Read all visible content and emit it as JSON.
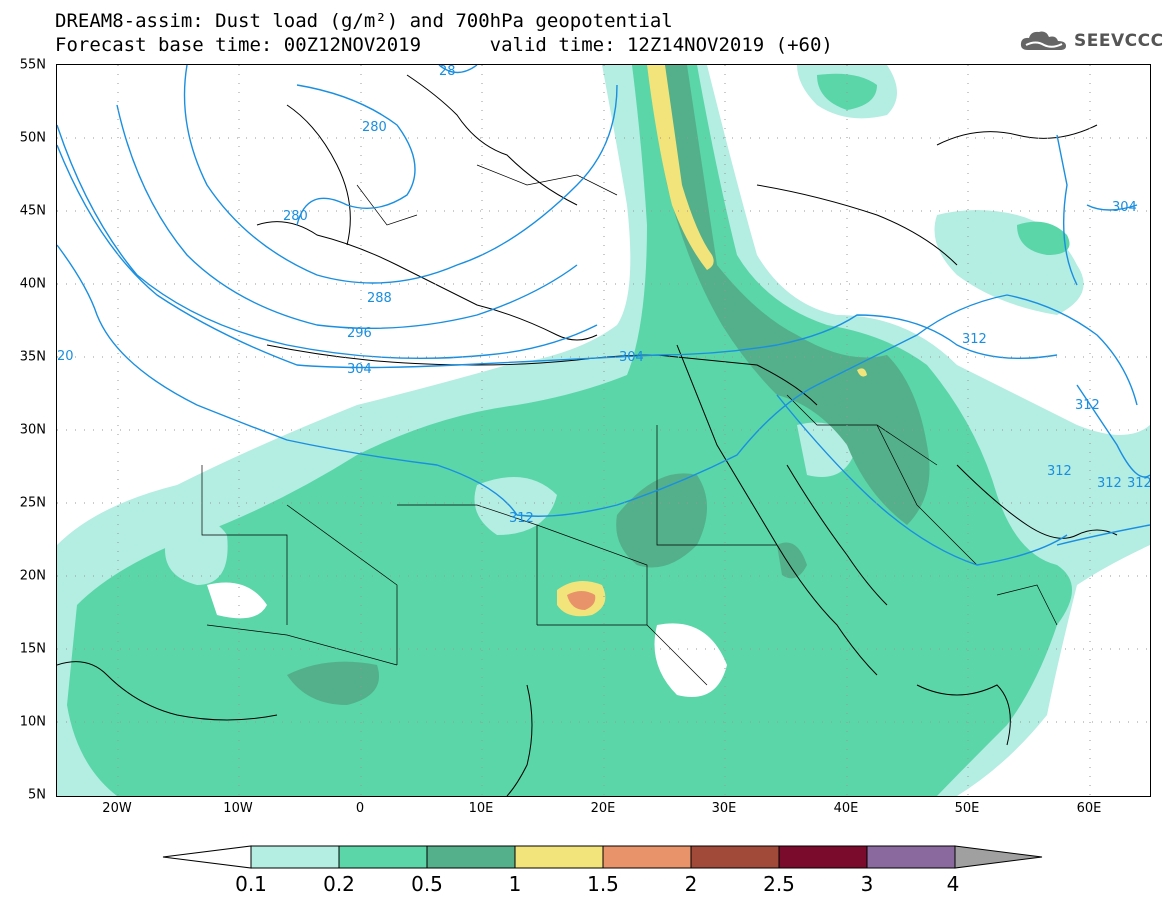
{
  "title_line1": "DREAM8-assim: Dust load (g/m²) and 700hPa geopotential",
  "title_line2": "Forecast base time: 00Z12NOV2019      valid time: 12Z14NOV2019 (+60)",
  "logo_text": "SEEVCCC",
  "lat_labels": [
    "55N",
    "50N",
    "45N",
    "40N",
    "35N",
    "30N",
    "25N",
    "20N",
    "15N",
    "10N",
    "5N"
  ],
  "lon_labels": [
    "20W",
    "10W",
    "0",
    "10E",
    "20E",
    "30E",
    "40E",
    "50E",
    "60E"
  ],
  "contour_labels": [
    "28",
    "280",
    "280",
    "288",
    "296",
    "304",
    "304",
    "312",
    "312",
    "312",
    "312",
    "312",
    "304",
    "20",
    "312"
  ],
  "colorbar": {
    "levels": [
      "0.1",
      "0.2",
      "0.5",
      "1",
      "1.5",
      "2",
      "2.5",
      "3",
      "4"
    ],
    "colors": [
      "#b4ede2",
      "#5ad6a8",
      "#53b08a",
      "#f2e47a",
      "#e8936a",
      "#a14a3a",
      "#7a0b2c",
      "#8a6a9e",
      "#a0a0a0"
    ]
  },
  "colors": {
    "contour": "#1a8fe0",
    "land_outline": "#000000"
  }
}
